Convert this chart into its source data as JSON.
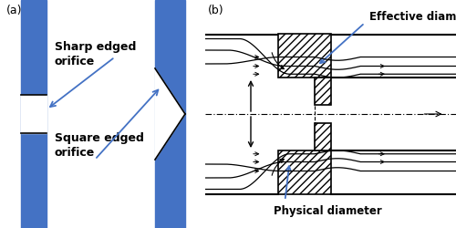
{
  "fig_width": 5.0,
  "fig_height": 2.5,
  "dpi": 100,
  "bg_color": "#ffffff",
  "blue_color": "#4472C4",
  "label_a": "(a)",
  "label_b": "(b)",
  "text_sharp": "Sharp edged\norifice",
  "text_square": "Square edged\norifice",
  "text_effective": "Effective diameter",
  "text_physical": "Physical diameter",
  "hatch_pattern": "////",
  "arrow_color": "#4472C4",
  "line_color": "#000000",
  "fontsize_label": 9,
  "fontsize_anno": 8.5
}
